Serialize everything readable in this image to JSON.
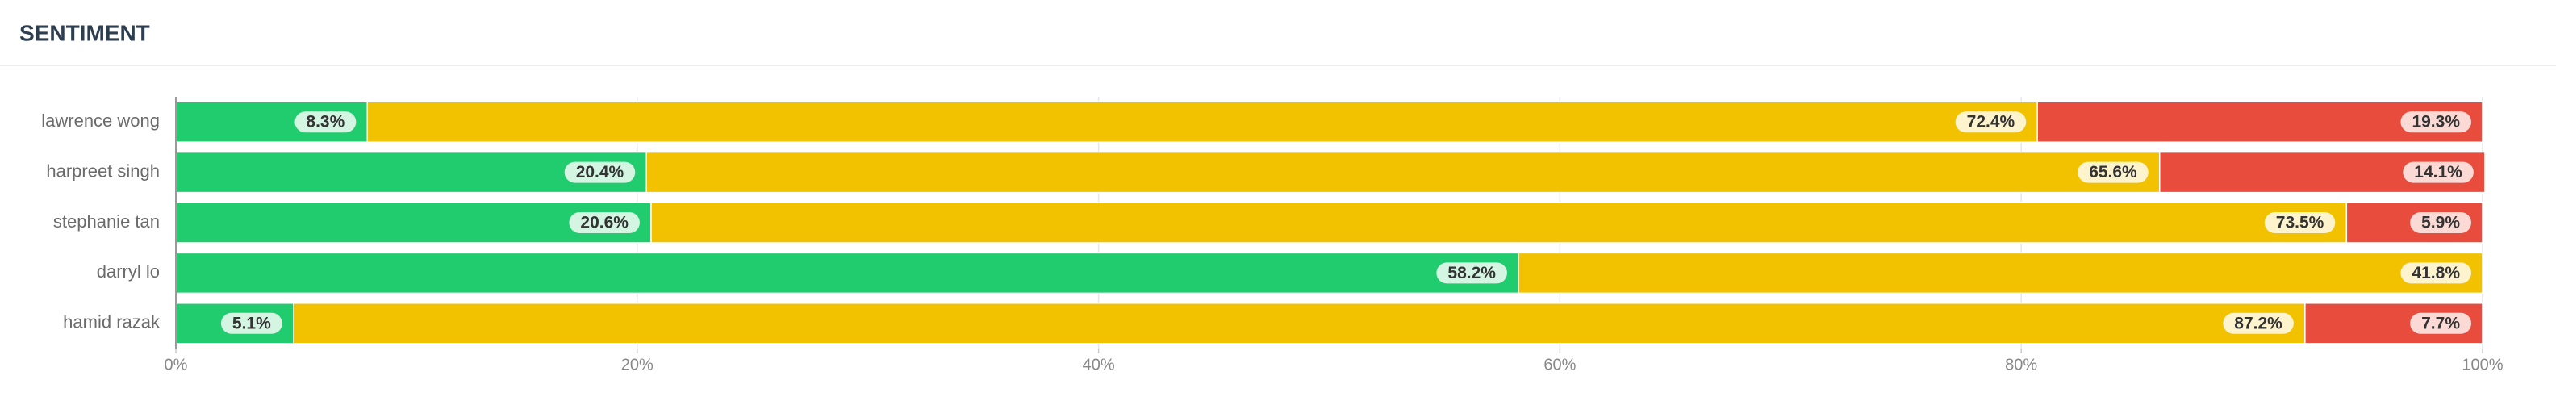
{
  "chart_data": {
    "type": "stacked-bar-horizontal",
    "title": "SENTIMENT",
    "categories": [
      "lawrence wong",
      "harpreet singh",
      "stephanie tan",
      "darryl lo",
      "hamid razak"
    ],
    "series": [
      {
        "color": "#21cc6e",
        "values": [
          8.3,
          20.4,
          20.6,
          58.2,
          5.1
        ],
        "value_labels": [
          "8.3%",
          "20.4%",
          "20.6%",
          "58.2%",
          "5.1%"
        ]
      },
      {
        "color": "#f2c200",
        "values": [
          72.4,
          65.6,
          73.5,
          41.8,
          87.2
        ],
        "value_labels": [
          "72.4%",
          "65.6%",
          "73.5%",
          "41.8%",
          "87.2%"
        ]
      },
      {
        "color": "#e84c3d",
        "values": [
          19.3,
          14.1,
          5.9,
          0,
          7.7
        ],
        "value_labels": [
          "19.3%",
          "14.1%",
          "5.9%",
          null,
          "7.7%"
        ]
      }
    ],
    "xlim": [
      0,
      100
    ],
    "xticks": [
      {
        "value": 0,
        "label": "0%"
      },
      {
        "value": 20,
        "label": "20%"
      },
      {
        "value": 40,
        "label": "40%"
      },
      {
        "value": 60,
        "label": "60%"
      },
      {
        "value": 80,
        "label": "80%"
      },
      {
        "value": 100,
        "label": "100%"
      }
    ],
    "grid": true
  }
}
